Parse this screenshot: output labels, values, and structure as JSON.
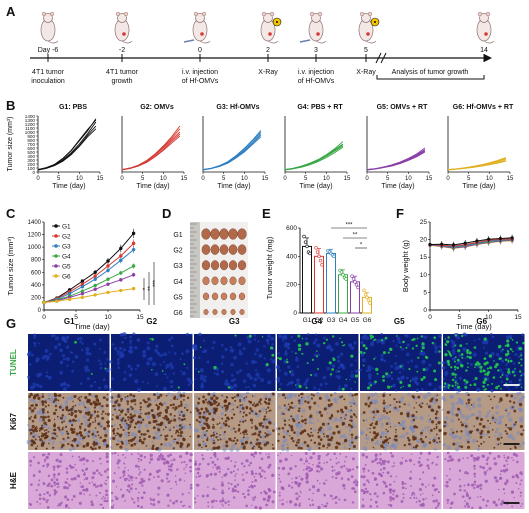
{
  "panel_letters": [
    "A",
    "B",
    "C",
    "D",
    "E",
    "F",
    "G"
  ],
  "timeline": {
    "days": [
      "Day -6",
      "-2",
      "0",
      "2",
      "3",
      "5",
      "14"
    ],
    "events": [
      {
        "line1": "4T1 tumor",
        "line2": "inoculation",
        "italic": false
      },
      {
        "line1": "4T1 tumor",
        "line2": "growth",
        "italic": false
      },
      {
        "line1": "i.v. injection",
        "line2": "of Hf-OMVs",
        "italic": true
      },
      {
        "line1": "X-Ray",
        "line2": "",
        "italic": false
      },
      {
        "line1": "i.v. injection",
        "line2": "of Hf-OMVs",
        "italic": true
      },
      {
        "line1": "X-Ray",
        "line2": "",
        "italic": false
      },
      {
        "line1": "Analysis of tumor growth",
        "line2": "",
        "italic": false
      }
    ],
    "xray_days": [
      "2",
      "5"
    ]
  },
  "colors": {
    "G1": "#111111",
    "G2": "#d63a33",
    "G3": "#2f7fc1",
    "G4": "#3aa846",
    "G5": "#8a3fa6",
    "G6": "#e0b020"
  },
  "chart_data": [
    {
      "id": "B",
      "type": "line",
      "ylabel": "Tumor size (mm³)",
      "xlabel": "Time (day)",
      "yticks": [
        0,
        100,
        200,
        300,
        400,
        500,
        600,
        700,
        800,
        900,
        1000,
        1100,
        1200,
        1300,
        1400
      ],
      "xticks": [
        0,
        5,
        10,
        15
      ],
      "ylim": [
        0,
        1400
      ],
      "xlim": [
        0,
        15
      ],
      "panels": [
        {
          "title": "G1: PBS",
          "color": "#111111",
          "x": [
            0,
            2,
            4,
            6,
            8,
            10,
            12,
            14
          ],
          "series": [
            [
              60,
              100,
              180,
              330,
              530,
              780,
              1030,
              1330
            ],
            [
              55,
              95,
              170,
              300,
              480,
              700,
              960,
              1250
            ],
            [
              60,
              100,
              165,
              280,
              450,
              660,
              920,
              1150
            ],
            [
              50,
              90,
              160,
              270,
              430,
              640,
              880,
              1080
            ],
            [
              60,
              110,
              190,
              340,
              540,
              800,
              1060,
              1300
            ]
          ]
        },
        {
          "title": "G2: OMVs",
          "color": "#d63a33",
          "x": [
            0,
            2,
            4,
            6,
            8,
            10,
            12,
            14
          ],
          "series": [
            [
              60,
              100,
              170,
              290,
              450,
              650,
              880,
              1150
            ],
            [
              55,
              95,
              160,
              270,
              420,
              600,
              800,
              1000
            ],
            [
              60,
              90,
              150,
              250,
              390,
              560,
              760,
              950
            ],
            [
              50,
              90,
              150,
              240,
              380,
              540,
              720,
              900
            ],
            [
              60,
              100,
              170,
              280,
              440,
              630,
              840,
              1080
            ]
          ]
        },
        {
          "title": "G3: Hf-OMVs",
          "color": "#2f7fc1",
          "x": [
            0,
            2,
            4,
            6,
            8,
            10,
            12,
            14
          ],
          "series": [
            [
              60,
              90,
              150,
              250,
              400,
              570,
              780,
              1000
            ],
            [
              55,
              90,
              140,
              230,
              360,
              520,
              720,
              920
            ],
            [
              60,
              95,
              160,
              260,
              410,
              590,
              800,
              1040
            ],
            [
              50,
              85,
              140,
              220,
              350,
              500,
              690,
              880
            ],
            [
              60,
              90,
              150,
              240,
              380,
              540,
              740,
              960
            ]
          ]
        },
        {
          "title": "G4: PBS + RT",
          "color": "#3aa846",
          "x": [
            0,
            2,
            4,
            6,
            8,
            10,
            12,
            14
          ],
          "series": [
            [
              60,
              90,
              140,
              210,
              300,
              410,
              560,
              700
            ],
            [
              55,
              85,
              130,
              200,
              280,
              390,
              520,
              650
            ],
            [
              60,
              95,
              150,
              220,
              310,
              430,
              580,
              760
            ],
            [
              50,
              80,
              120,
              180,
              260,
              360,
              480,
              620
            ],
            [
              60,
              90,
              140,
              210,
              290,
              400,
              540,
              680
            ]
          ]
        },
        {
          "title": "G5: OMVs + RT",
          "color": "#8a3fa6",
          "x": [
            0,
            2,
            4,
            6,
            8,
            10,
            12,
            14
          ],
          "series": [
            [
              60,
              80,
              120,
              170,
              240,
              320,
              430,
              560
            ],
            [
              55,
              80,
              110,
              160,
              220,
              300,
              400,
              520
            ],
            [
              60,
              85,
              125,
              180,
              250,
              340,
              450,
              600
            ],
            [
              50,
              75,
              110,
              150,
              210,
              290,
              380,
              500
            ],
            [
              60,
              80,
              115,
              165,
              230,
              310,
              420,
              540
            ]
          ]
        },
        {
          "title": "G6: Hf-OMVs + RT",
          "color": "#e0b020",
          "x": [
            0,
            2,
            4,
            6,
            8,
            10,
            12,
            14
          ],
          "series": [
            [
              60,
              75,
              100,
              130,
              170,
              210,
              260,
              320
            ],
            [
              55,
              70,
              95,
              120,
              150,
              190,
              240,
              290
            ],
            [
              60,
              80,
              105,
              140,
              180,
              230,
              290,
              360
            ],
            [
              50,
              70,
              90,
              115,
              145,
              180,
              220,
              270
            ],
            [
              60,
              75,
              100,
              135,
              175,
              220,
              280,
              340
            ]
          ]
        }
      ]
    },
    {
      "id": "C",
      "type": "line",
      "ylabel": "Tumor size (mm³)",
      "xlabel": "Time (day)",
      "yticks": [
        0,
        200,
        400,
        600,
        800,
        1000,
        1200,
        1400
      ],
      "xticks": [
        0,
        5,
        10,
        15
      ],
      "ylim": [
        0,
        1400
      ],
      "xlim": [
        0,
        15
      ],
      "x": [
        0,
        2,
        4,
        6,
        8,
        10,
        12,
        14
      ],
      "legend": [
        "G1",
        "G2",
        "G3",
        "G4",
        "G5",
        "G6"
      ],
      "series": [
        {
          "name": "G1",
          "values": [
            120,
            190,
            320,
            460,
            600,
            780,
            980,
            1220
          ]
        },
        {
          "name": "G2",
          "values": [
            120,
            180,
            290,
            410,
            540,
            700,
            860,
            1060
          ]
        },
        {
          "name": "G3",
          "values": [
            120,
            170,
            260,
            370,
            490,
            630,
            790,
            960
          ]
        },
        {
          "name": "G4",
          "values": [
            120,
            160,
            220,
            300,
            390,
            490,
            590,
            700
          ]
        },
        {
          "name": "G5",
          "values": [
            120,
            150,
            200,
            260,
            330,
            410,
            480,
            560
          ]
        },
        {
          "name": "G6",
          "values": [
            120,
            140,
            170,
            200,
            240,
            280,
            310,
            340
          ]
        }
      ],
      "annotations": [
        "*",
        "**",
        "***"
      ]
    },
    {
      "id": "E",
      "type": "bar",
      "ylabel": "Tumor weight (mg)",
      "categories": [
        "G1",
        "G2",
        "G3",
        "G4",
        "G5",
        "G6"
      ],
      "values": [
        470,
        400,
        420,
        270,
        220,
        110
      ],
      "errors": [
        60,
        55,
        30,
        35,
        40,
        35
      ],
      "points": [
        [
          540,
          500,
          470,
          430,
          420
        ],
        [
          460,
          430,
          400,
          370,
          340
        ],
        [
          440,
          430,
          420,
          410,
          400
        ],
        [
          300,
          290,
          270,
          250,
          240
        ],
        [
          260,
          240,
          220,
          200,
          180
        ],
        [
          160,
          130,
          110,
          90,
          70
        ]
      ],
      "yticks": [
        0,
        200,
        400,
        600
      ],
      "ylim": [
        0,
        600
      ],
      "annotations": [
        "***",
        "**",
        "*"
      ]
    },
    {
      "id": "F",
      "type": "line",
      "ylabel": "Body weight (g)",
      "xlabel": "Time (day)",
      "yticks": [
        0,
        5,
        10,
        15,
        20,
        25
      ],
      "xticks": [
        0,
        5,
        10,
        15
      ],
      "ylim": [
        0,
        25
      ],
      "xlim": [
        0,
        15
      ],
      "x": [
        0,
        2,
        4,
        6,
        8,
        10,
        12,
        14
      ],
      "series": [
        {
          "name": "G1",
          "values": [
            18.6,
            18.7,
            18.5,
            19.0,
            19.6,
            20.1,
            20.3,
            20.5
          ]
        },
        {
          "name": "G2",
          "values": [
            18.5,
            18.4,
            18.2,
            18.6,
            19.2,
            19.8,
            20.1,
            20.2
          ]
        },
        {
          "name": "G3",
          "values": [
            18.4,
            18.2,
            18.0,
            18.4,
            19.0,
            19.6,
            19.9,
            20.1
          ]
        },
        {
          "name": "G4",
          "values": [
            18.6,
            18.3,
            17.8,
            18.3,
            18.9,
            19.4,
            19.8,
            20.0
          ]
        },
        {
          "name": "G5",
          "values": [
            18.5,
            18.1,
            17.6,
            18.0,
            18.7,
            19.2,
            19.6,
            19.8
          ]
        },
        {
          "name": "G6",
          "values": [
            18.4,
            18.0,
            17.5,
            17.9,
            18.6,
            19.1,
            19.5,
            19.7
          ]
        }
      ]
    }
  ],
  "panel_d": {
    "rows": [
      "G1",
      "G2",
      "G3",
      "G4",
      "G5",
      "G6"
    ],
    "tumor_size_scale": [
      1.0,
      0.92,
      0.86,
      0.7,
      0.6,
      0.42
    ]
  },
  "panel_g": {
    "columns": [
      "G1",
      "G2",
      "G3",
      "G4",
      "G5",
      "G6"
    ],
    "rows": [
      {
        "label": "TUNEL",
        "label_color": "#3aa846",
        "bg": "#0b1e73",
        "dot": "#23d34a",
        "dot_counts": [
          3,
          6,
          10,
          40,
          60,
          140
        ]
      },
      {
        "label": "Ki67",
        "label_color": "#111111",
        "bg": "#b59a86",
        "dot": "#5a2b10",
        "dot_counts": [
          260,
          240,
          230,
          150,
          130,
          80
        ]
      },
      {
        "label": "H&E",
        "label_color": "#111111",
        "bg": "#d9a8d8",
        "dot": "#a05ab0",
        "dot_counts": [
          160,
          150,
          150,
          140,
          140,
          130
        ]
      }
    ]
  }
}
